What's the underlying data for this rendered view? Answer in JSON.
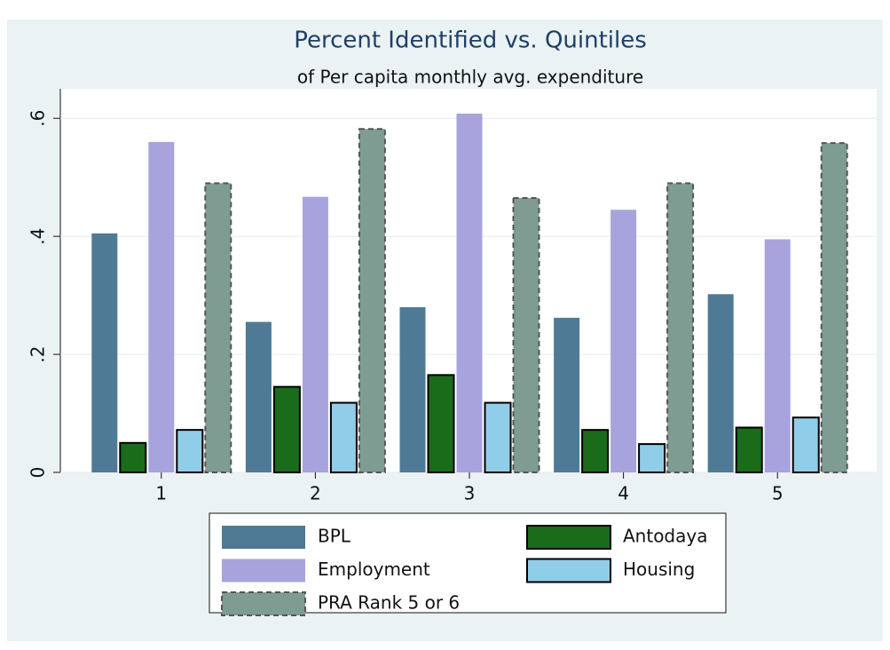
{
  "chart_data": {
    "type": "bar",
    "title": "Percent Identified vs. Quintiles",
    "subtitle": "of Per capita monthly avg. expenditure",
    "categories": [
      "1",
      "2",
      "3",
      "4",
      "5"
    ],
    "series": [
      {
        "name": "BPL",
        "color": "#4e7a96",
        "values": [
          0.405,
          0.255,
          0.28,
          0.262,
          0.302
        ]
      },
      {
        "name": "Antodaya",
        "color": "#1a6b1a",
        "values": [
          0.05,
          0.145,
          0.165,
          0.072,
          0.076
        ]
      },
      {
        "name": "Employment",
        "color": "#a7a3dc",
        "values": [
          0.56,
          0.467,
          0.608,
          0.445,
          0.395
        ]
      },
      {
        "name": "Housing",
        "color": "#90cde9",
        "values": [
          0.072,
          0.118,
          0.118,
          0.048,
          0.093
        ]
      },
      {
        "name": "PRA Rank 5 or 6",
        "color": "#7f9c92",
        "values": [
          0.49,
          0.582,
          0.465,
          0.49,
          0.558
        ]
      }
    ],
    "ylim": [
      0,
      0.65
    ],
    "yticks": [
      0,
      {
        "value": 0.2,
        "label": ".2"
      },
      {
        "value": 0.4,
        "label": ".4"
      },
      {
        "value": 0.6,
        "label": ".6"
      }
    ],
    "grid": true,
    "legend": "bottom"
  }
}
